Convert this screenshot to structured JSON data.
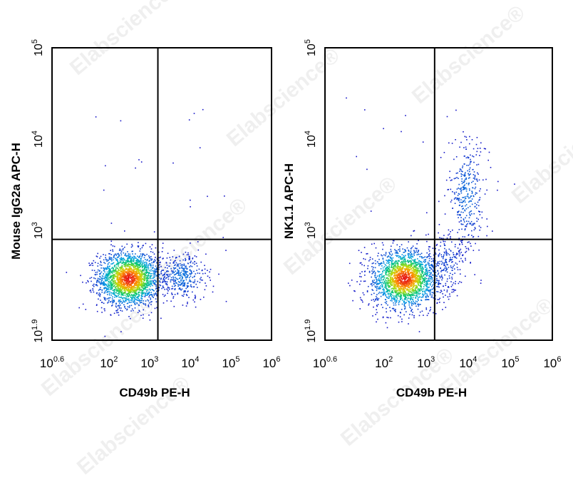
{
  "watermark": "Elabscience®",
  "chart_data": [
    {
      "type": "scatter",
      "plot_style": "density pseudocolor dot plot with quadrant gates",
      "x_scale": "log",
      "y_scale": "log",
      "xlabel": "CD49b PE-H",
      "ylabel": "Mouse IgG2a APC-H",
      "x_ticks": [
        {
          "value": 3.98,
          "base": "10",
          "exp": "0.6"
        },
        {
          "value": 100,
          "base": "10",
          "exp": "2"
        },
        {
          "value": 1000,
          "base": "10",
          "exp": "3"
        },
        {
          "value": 10000,
          "base": "10",
          "exp": "4"
        },
        {
          "value": 100000,
          "base": "10",
          "exp": "5"
        },
        {
          "value": 1000000,
          "base": "10",
          "exp": "6"
        }
      ],
      "y_ticks": [
        {
          "value": 79.4,
          "base": "10",
          "exp": "1.9"
        },
        {
          "value": 1000,
          "base": "10",
          "exp": "3"
        },
        {
          "value": 10000,
          "base": "10",
          "exp": "4"
        },
        {
          "value": 100000,
          "base": "10",
          "exp": "5"
        }
      ],
      "xlim": [
        3.98,
        1000000
      ],
      "ylim": [
        63,
        100000
      ],
      "gate": {
        "x": 1600,
        "y": 800
      },
      "populations": [
        {
          "x_center": 300,
          "y_center": 300,
          "x_spread_log": 0.38,
          "y_spread_log": 0.15,
          "weight": 0.82
        },
        {
          "x_center": 6000,
          "y_center": 320,
          "x_spread_log": 0.3,
          "y_spread_log": 0.13,
          "weight": 0.15
        }
      ]
    },
    {
      "type": "scatter",
      "plot_style": "density pseudocolor dot plot with quadrant gates",
      "x_scale": "log",
      "y_scale": "log",
      "xlabel": "CD49b PE-H",
      "ylabel": "NK1.1 APC-H",
      "x_ticks": [
        {
          "value": 3.98,
          "base": "10",
          "exp": "0.6"
        },
        {
          "value": 100,
          "base": "10",
          "exp": "2"
        },
        {
          "value": 1000,
          "base": "10",
          "exp": "3"
        },
        {
          "value": 10000,
          "base": "10",
          "exp": "4"
        },
        {
          "value": 100000,
          "base": "10",
          "exp": "5"
        },
        {
          "value": 1000000,
          "base": "10",
          "exp": "6"
        }
      ],
      "y_ticks": [
        {
          "value": 79.4,
          "base": "10",
          "exp": "1.9"
        },
        {
          "value": 1000,
          "base": "10",
          "exp": "3"
        },
        {
          "value": 10000,
          "base": "10",
          "exp": "4"
        },
        {
          "value": 100000,
          "base": "10",
          "exp": "5"
        }
      ],
      "xlim": [
        3.98,
        1000000
      ],
      "ylim": [
        63,
        100000
      ],
      "gate": {
        "x": 1600,
        "y": 800
      },
      "populations": [
        {
          "x_center": 300,
          "y_center": 300,
          "x_spread_log": 0.38,
          "y_spread_log": 0.16,
          "weight": 0.78
        },
        {
          "x_center": 9000,
          "y_center": 2500,
          "x_spread_log": 0.22,
          "y_spread_log": 0.3,
          "weight": 0.14
        },
        {
          "x_center": 3000,
          "y_center": 450,
          "x_spread_log": 0.25,
          "y_spread_log": 0.18,
          "weight": 0.08
        }
      ]
    }
  ]
}
